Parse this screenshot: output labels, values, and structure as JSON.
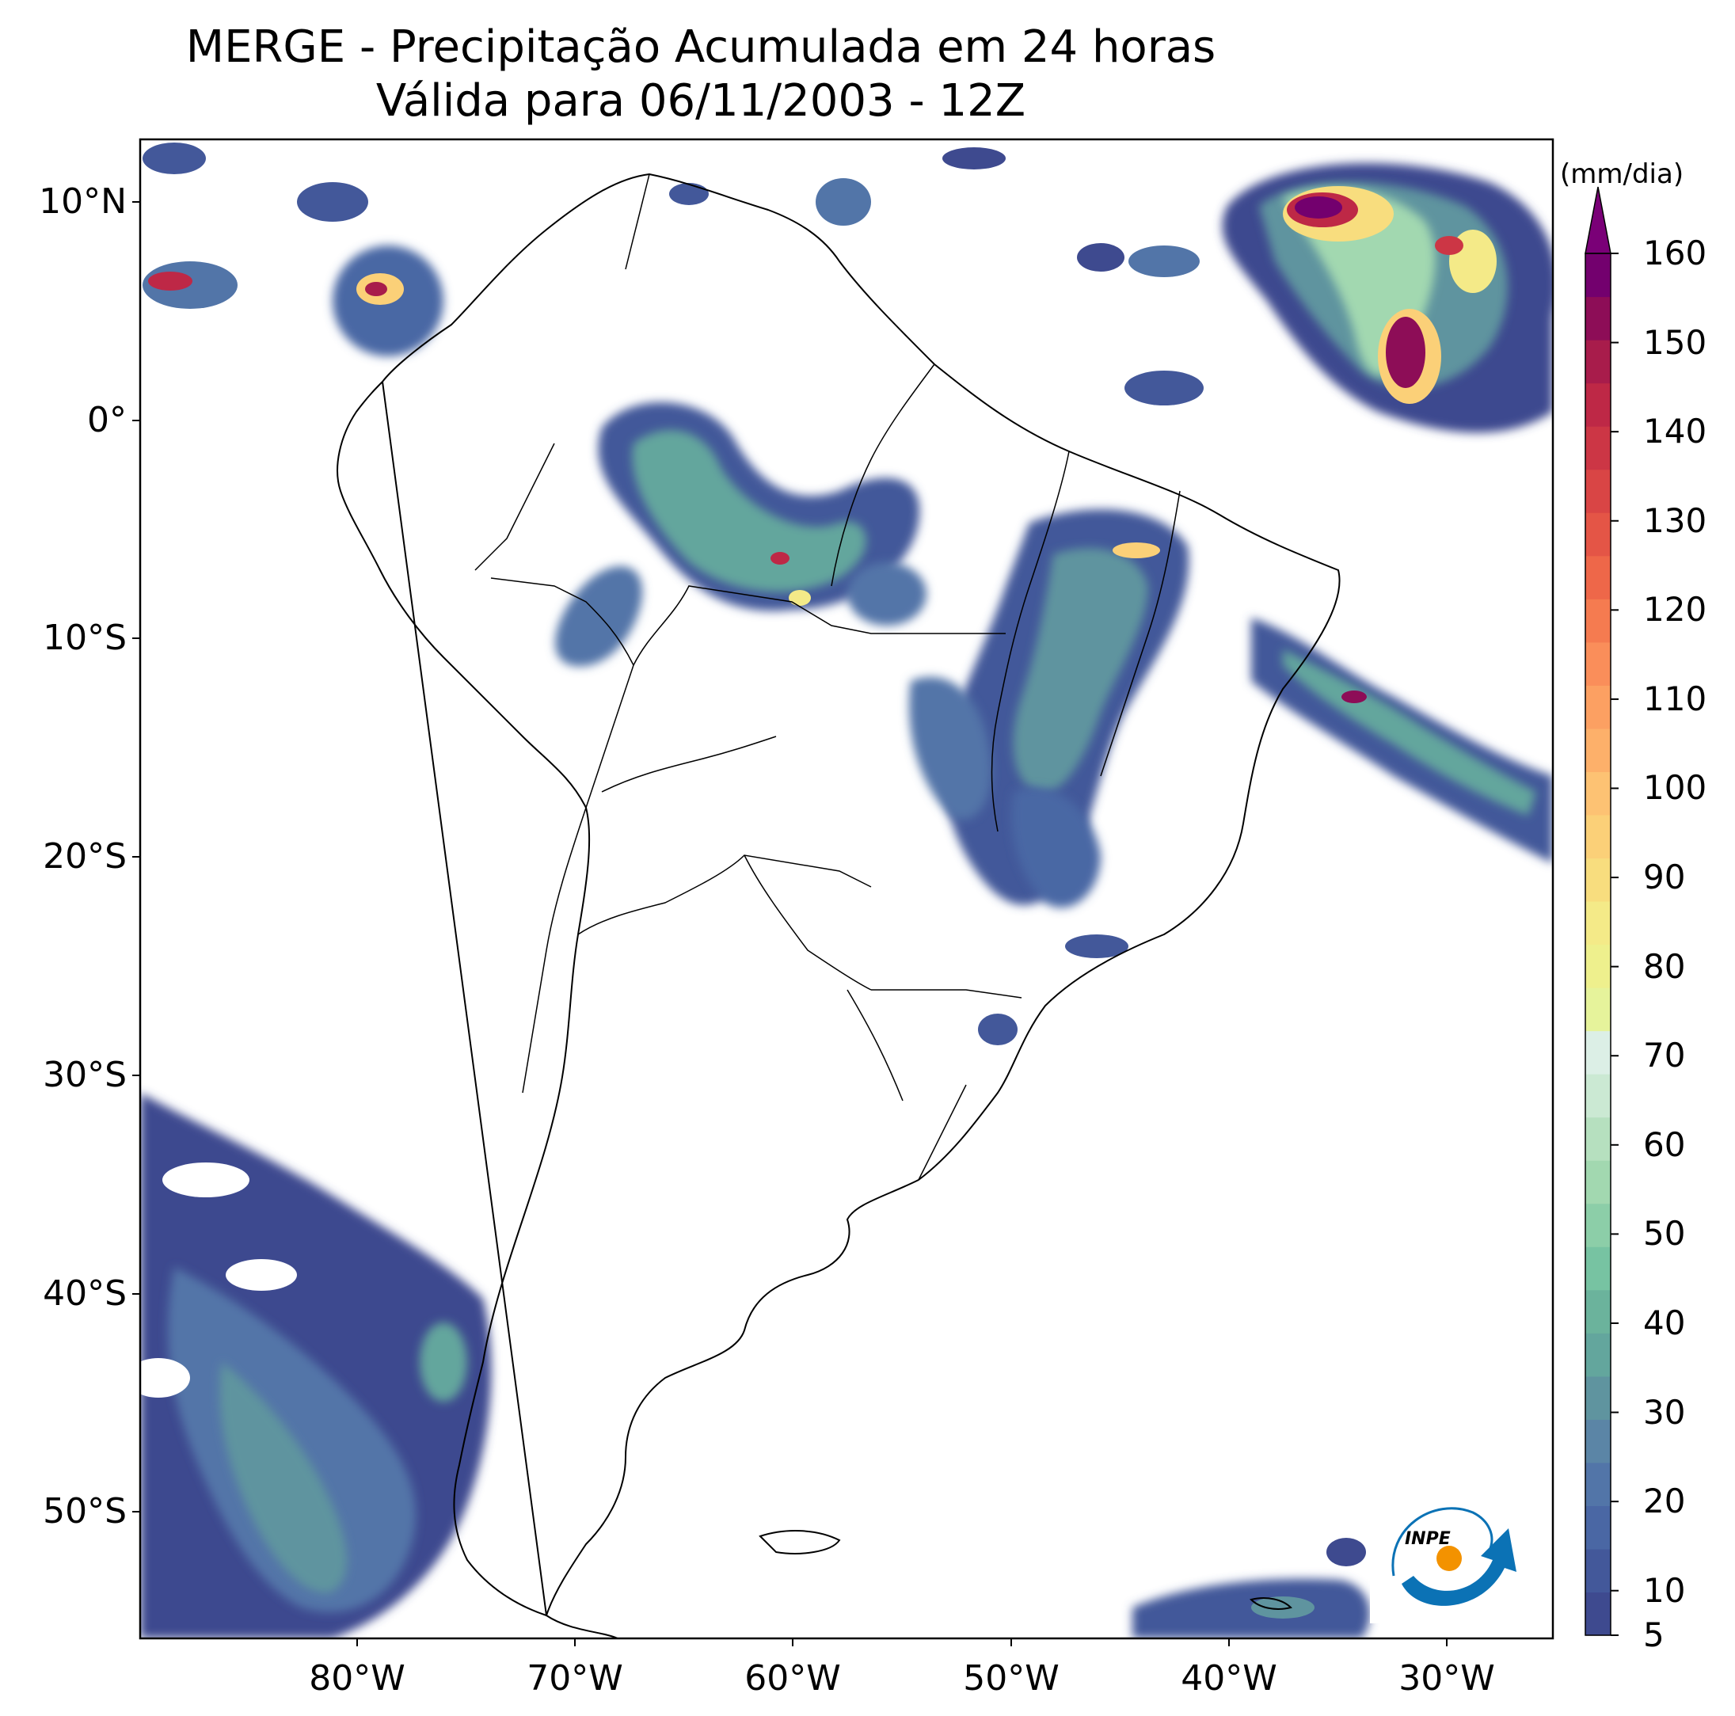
{
  "title_line1": "MERGE - Precipitação Acumulada em 24 horas",
  "title_line2": "Válida para 06/11/2003 - 12Z",
  "lat_labels": [
    "10°N",
    "0°",
    "10°S",
    "20°S",
    "30°S",
    "40°S",
    "50°S"
  ],
  "lon_labels": [
    "80°W",
    "70°W",
    "60°W",
    "50°W",
    "40°W",
    "30°W"
  ],
  "colorbar": {
    "unit": "(mm/dia)",
    "ticks": [
      "5",
      "10",
      "20",
      "30",
      "40",
      "50",
      "60",
      "70",
      "80",
      "90",
      "100",
      "110",
      "120",
      "130",
      "140",
      "150",
      "160"
    ],
    "colors": [
      "#3e4a8f",
      "#43589a",
      "#4a67a4",
      "#5275a8",
      "#5b85a6",
      "#5f949f",
      "#63a69d",
      "#6bb39c",
      "#77c3a2",
      "#8ccea8",
      "#a2d8b0",
      "#b6e0bf",
      "#cbe9d3",
      "#dcefe6",
      "#e6f39b",
      "#eef08d",
      "#f4ea88",
      "#f8dd7e",
      "#fbd078",
      "#fdc273",
      "#fdb06a",
      "#fca062",
      "#fa8e5a",
      "#f57b50",
      "#ee6749",
      "#e45546",
      "#d94545",
      "#cc3645",
      "#be2846",
      "#a81c4b",
      "#8d0d57",
      "#73006e"
    ],
    "extend_color": "#7a0077"
  },
  "logo_text": "INPE",
  "colors": {
    "frame": "#000000",
    "low_precip": "#3e4a8f",
    "mid_precip": "#77c3a2",
    "high_precip": "#fbd078",
    "max_precip": "#8d0d57"
  }
}
